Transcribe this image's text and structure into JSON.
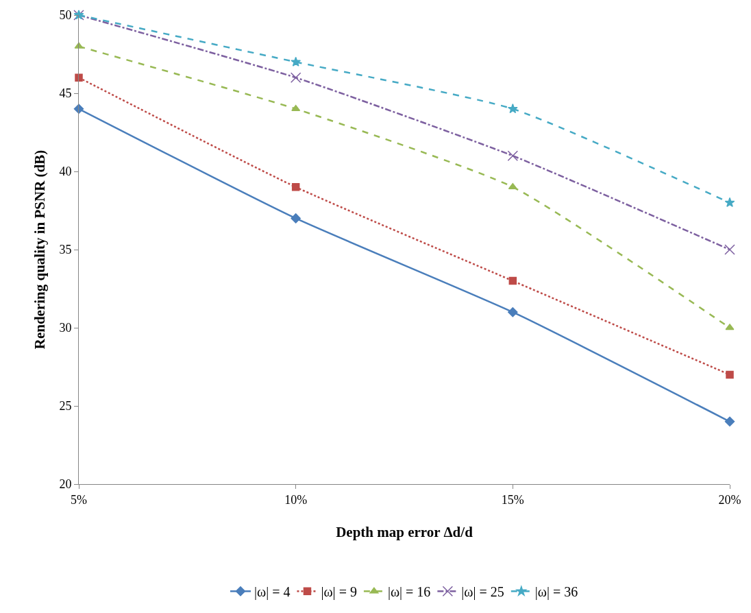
{
  "chart_data": {
    "type": "line",
    "xlabel": "Depth map error Δd/d",
    "ylabel": "Rendering quality in PSNR (dB)",
    "categories": [
      "5%",
      "10%",
      "15%",
      "20%"
    ],
    "ylim": [
      20,
      50
    ],
    "yticks": [
      20,
      25,
      30,
      35,
      40,
      45,
      50
    ],
    "legend": "bottom",
    "series": [
      {
        "name": "|ω| = 4",
        "color": "#4a7ebb",
        "values": [
          44,
          37,
          31,
          24
        ],
        "marker": "diamond",
        "line_style": "solid"
      },
      {
        "name": "|ω| = 9",
        "color": "#be4b48",
        "values": [
          46,
          39,
          33,
          27
        ],
        "marker": "square",
        "line_style": "dotted"
      },
      {
        "name": "|ω| = 16",
        "color": "#98b954",
        "values": [
          48,
          44,
          39,
          30
        ],
        "marker": "triangle",
        "line_style": "dashed"
      },
      {
        "name": "|ω| = 25",
        "color": "#7d60a0",
        "values": [
          50,
          46,
          41,
          35
        ],
        "marker": "cross",
        "line_style": "dashdot"
      },
      {
        "name": "|ω| = 36",
        "color": "#46aac5",
        "values": [
          50,
          47,
          44,
          38
        ],
        "marker": "star",
        "line_style": "dashed"
      }
    ]
  }
}
